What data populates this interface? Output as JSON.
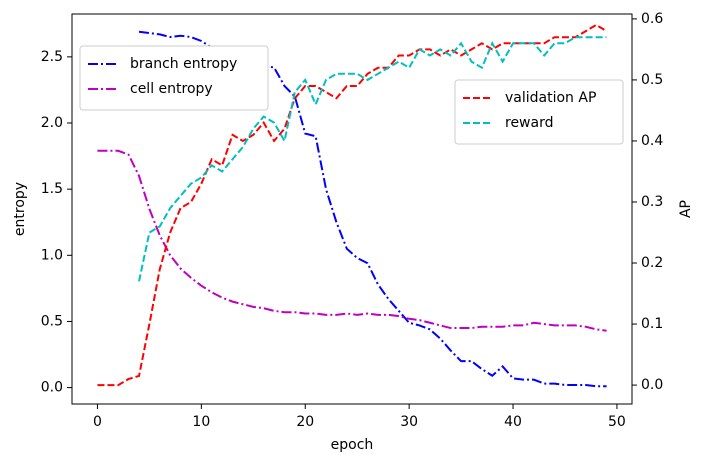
{
  "chart_data": {
    "type": "line",
    "xlabel": "epoch",
    "ylabel": "entropy",
    "y2label": "AP",
    "x": [
      0,
      1,
      2,
      3,
      4,
      5,
      6,
      7,
      8,
      9,
      10,
      11,
      12,
      13,
      14,
      15,
      16,
      17,
      18,
      19,
      20,
      21,
      22,
      23,
      24,
      25,
      26,
      27,
      28,
      29,
      30,
      31,
      32,
      33,
      34,
      35,
      36,
      37,
      38,
      39,
      40,
      41,
      42,
      43,
      44,
      45,
      46,
      47,
      48,
      49
    ],
    "xlim": [
      -2.45,
      51.45
    ],
    "xticks": [
      0,
      10,
      20,
      30,
      40,
      50
    ],
    "ylim": [
      -0.124,
      2.824
    ],
    "yticks": [
      {
        "value": 0,
        "label": "0.0"
      },
      {
        "value": 0.5,
        "label": "0.5"
      },
      {
        "value": 1,
        "label": "1.0"
      },
      {
        "value": 1.5,
        "label": "1.5"
      },
      {
        "value": 2,
        "label": "2.0"
      },
      {
        "value": 2.5,
        "label": "2.5"
      }
    ],
    "y2lim": [
      -0.031,
      0.608
    ],
    "y2ticks": [
      {
        "value": 0,
        "label": "0.0"
      },
      {
        "value": 0.1,
        "label": "0.1"
      },
      {
        "value": 0.2,
        "label": "0.2"
      },
      {
        "value": 0.3,
        "label": "0.3"
      },
      {
        "value": 0.4,
        "label": "0.4"
      },
      {
        "value": 0.5,
        "label": "0.5"
      },
      {
        "value": 0.6,
        "label": "0.6"
      }
    ],
    "legend": "upper left",
    "legend2": "upper right",
    "series": [
      {
        "name": "branch entropy",
        "color": "#0000ff",
        "linestyle": "dashdot",
        "values": [
          null,
          null,
          null,
          null,
          2.69,
          2.68,
          2.67,
          2.65,
          2.66,
          2.65,
          2.62,
          2.57,
          2.55,
          2.52,
          2.5,
          2.48,
          2.43,
          2.42,
          2.28,
          2.2,
          1.92,
          1.9,
          1.5,
          1.25,
          1.05,
          0.98,
          0.94,
          0.78,
          0.67,
          0.58,
          0.49,
          0.47,
          0.44,
          0.37,
          0.28,
          0.2,
          0.2,
          0.14,
          0.09,
          0.16,
          0.07,
          0.06,
          0.06,
          0.03,
          0.03,
          0.02,
          0.02,
          0.02,
          0.01,
          0.01
        ]
      },
      {
        "name": "cell entropy",
        "color": "#bf00bf",
        "linestyle": "dashdot",
        "values": [
          1.79,
          1.79,
          1.79,
          1.76,
          1.6,
          1.35,
          1.15,
          1.0,
          0.9,
          0.83,
          0.77,
          0.72,
          0.68,
          0.65,
          0.63,
          0.61,
          0.6,
          0.58,
          0.57,
          0.57,
          0.56,
          0.56,
          0.55,
          0.55,
          0.56,
          0.55,
          0.56,
          0.55,
          0.55,
          0.54,
          0.52,
          0.51,
          0.49,
          0.47,
          0.45,
          0.45,
          0.45,
          0.46,
          0.46,
          0.46,
          0.47,
          0.47,
          0.49,
          0.48,
          0.47,
          0.47,
          0.47,
          0.46,
          0.44,
          0.43
        ]
      },
      {
        "name": "validation AP",
        "color": "#ff0000",
        "linestyle": "dashed",
        "axis": "y2",
        "values": [
          0.0,
          0.0,
          0.0,
          0.01,
          0.015,
          0.1,
          0.19,
          0.25,
          0.29,
          0.3,
          0.33,
          0.37,
          0.36,
          0.41,
          0.4,
          0.41,
          0.43,
          0.4,
          0.42,
          0.47,
          0.49,
          0.49,
          0.48,
          0.47,
          0.49,
          0.49,
          0.51,
          0.52,
          0.52,
          0.54,
          0.54,
          0.55,
          0.55,
          0.54,
          0.55,
          0.54,
          0.55,
          0.56,
          0.55,
          0.56,
          0.56,
          0.56,
          0.56,
          0.56,
          0.57,
          0.57,
          0.57,
          0.58,
          0.59,
          0.58
        ]
      },
      {
        "name": "reward",
        "color": "#00bfbf",
        "linestyle": "dashed",
        "axis": "y2",
        "values": [
          null,
          null,
          null,
          null,
          0.17,
          0.25,
          0.26,
          0.29,
          0.31,
          0.33,
          0.34,
          0.36,
          0.35,
          0.37,
          0.39,
          0.42,
          0.44,
          0.43,
          0.4,
          0.48,
          0.5,
          0.46,
          0.5,
          0.51,
          0.51,
          0.51,
          0.5,
          0.51,
          0.52,
          0.53,
          0.52,
          0.55,
          0.54,
          0.55,
          0.54,
          0.56,
          0.53,
          0.52,
          0.56,
          0.53,
          0.56,
          0.56,
          0.56,
          0.54,
          0.56,
          0.56,
          0.57,
          0.57,
          0.57,
          0.57
        ]
      }
    ]
  }
}
